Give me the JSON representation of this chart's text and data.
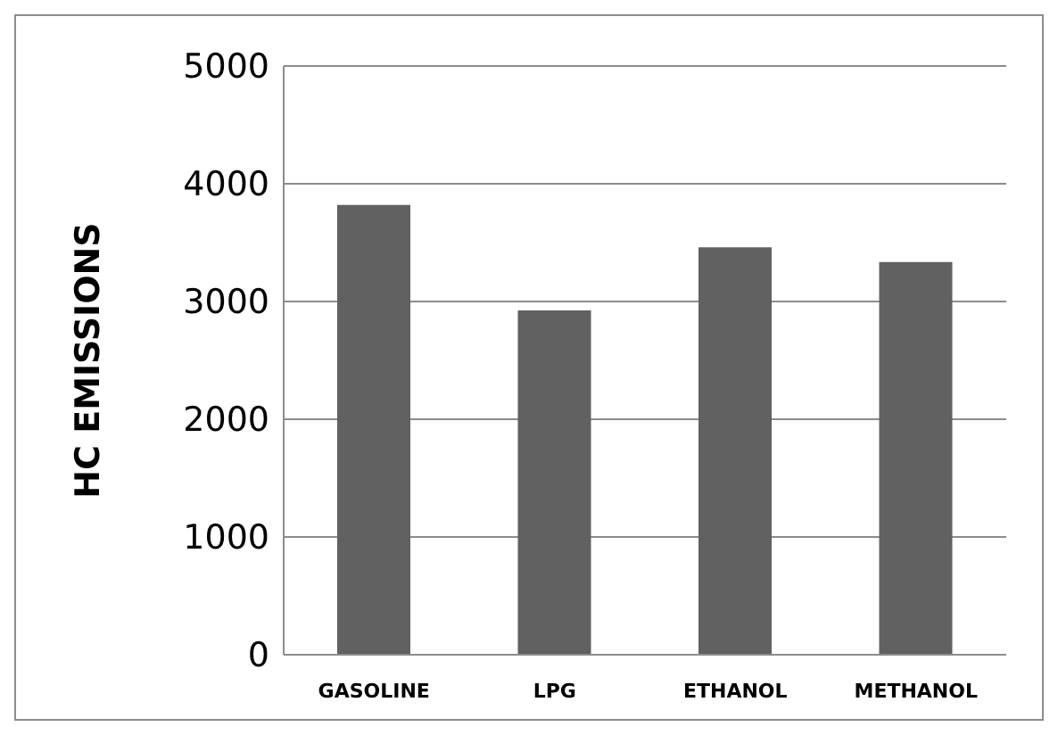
{
  "chart_data": {
    "type": "bar",
    "ylabel": "HC EMISSIONS",
    "categories": [
      "GASOLINE",
      "LPG",
      "ETHANOL",
      "METHANOL"
    ],
    "values": [
      3820,
      2925,
      3460,
      3335
    ],
    "color": "#616161",
    "ylim": [
      0,
      5000
    ],
    "yticks": [
      0,
      1000,
      2000,
      3000,
      4000,
      5000
    ],
    "grid": "y"
  }
}
